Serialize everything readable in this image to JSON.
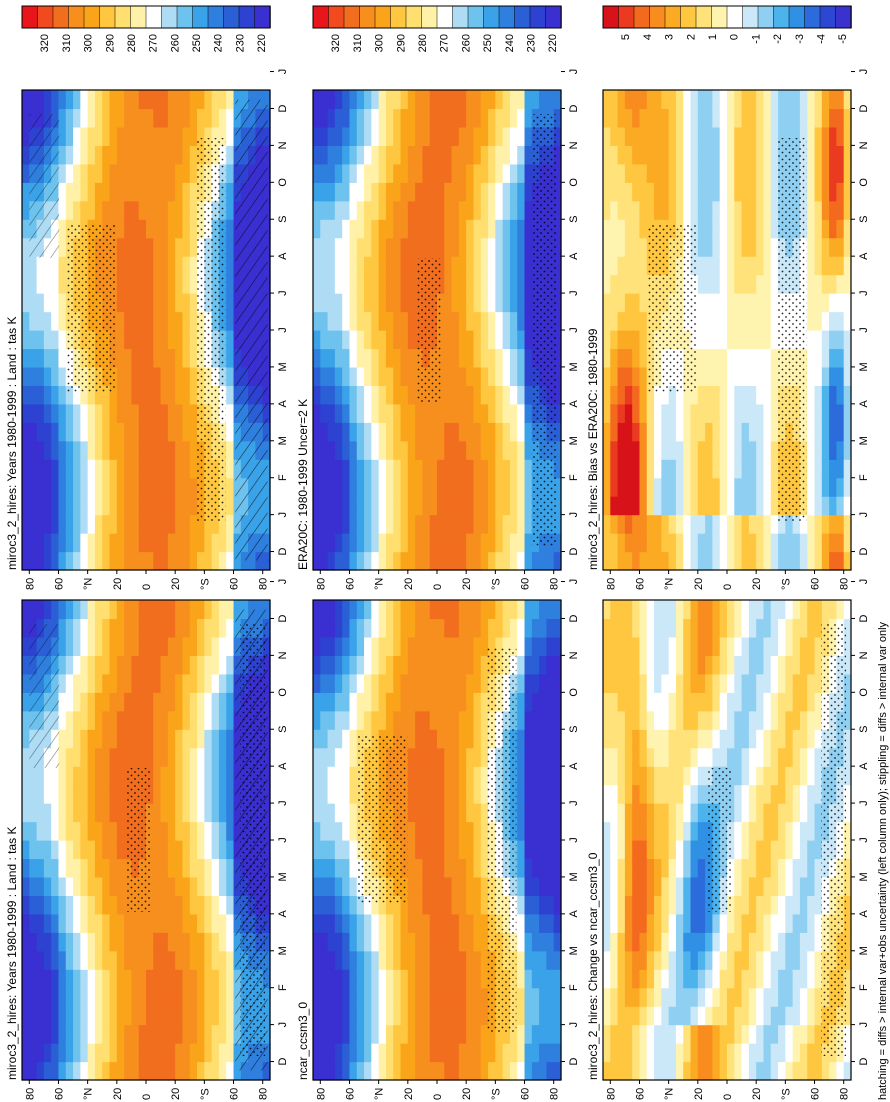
{
  "figure": {
    "footer": "hatching = diffs > internal var+obs uncertainty (left column only); stippling = diffs > internal var only"
  },
  "axes": {
    "lat_ticks": [
      "80",
      "60",
      "°N",
      "20",
      "0",
      "20",
      "°S",
      "60",
      "80"
    ],
    "month_ticks": [
      "D",
      "J",
      "F",
      "M",
      "A",
      "M",
      "J",
      "J",
      "A",
      "S",
      "O",
      "N",
      "D",
      "J"
    ]
  },
  "colorbars": {
    "abs": {
      "labels": [
        "320",
        "310",
        "300",
        "290",
        "280",
        "270",
        "260",
        "250",
        "240",
        "230",
        "220"
      ],
      "colors": [
        "#e8161a",
        "#f04a1e",
        "#f26e1f",
        "#f78f1f",
        "#faa519",
        "#ffc63f",
        "#ffdf70",
        "#fff2a8",
        "#ffffff",
        "#aedcf5",
        "#6ec3ee",
        "#3aa2e8",
        "#2e7fde",
        "#2a5fd6",
        "#2e42d2",
        "#3a2fd0"
      ]
    },
    "diff": {
      "labels": [
        "5",
        "4",
        "3",
        "2",
        "1",
        "0",
        "-1",
        "-2",
        "-3",
        "-4",
        "-5"
      ],
      "colors": [
        "#d71218",
        "#ea3a20",
        "#f36a1f",
        "#f88c1e",
        "#fbaa23",
        "#ffc640",
        "#ffe27a",
        "#fff3b0",
        "#ffffff",
        "#cbe8f8",
        "#8fd0f2",
        "#4db3ec",
        "#2f90e4",
        "#2c6bdb",
        "#2c48d3",
        "#3a32cf"
      ]
    }
  },
  "panels": [
    {
      "id": "p1",
      "title": "miroc3_2_hires: Years 1980-1999 : Land : tas K"
    },
    {
      "id": "p2",
      "title": "ERA20C: 1980-1999 Uncer=2 K"
    },
    {
      "id": "p3",
      "title": "miroc3_2_hires: Bias vs ERA20C: 1980-1999"
    },
    {
      "id": "p4",
      "title": "miroc3_2_hires: Years 1980-1999 : Land : tas K"
    },
    {
      "id": "p5",
      "title": "ncar_ccsm3_0"
    },
    {
      "id": "p6",
      "title": "miroc3_2_hires: Change vs ncar_ccsm3_0"
    }
  ],
  "chart_data": [
    {
      "type": "heatmap",
      "title": "miroc3_2_hires: Years 1980-1999 : Land : tas K",
      "x": "latitude (80N to 80S)",
      "y": "month (Dec to Jan)",
      "units": "K",
      "clim": [
        215,
        325
      ]
    },
    {
      "type": "heatmap",
      "title": "ERA20C: 1980-1999 Uncer=2 K",
      "x": "latitude (80N to 80S)",
      "y": "month (Dec to Jan)",
      "units": "K",
      "clim": [
        215,
        325
      ]
    },
    {
      "type": "heatmap",
      "title": "miroc3_2_hires: Bias vs ERA20C: 1980-1999",
      "x": "latitude (80N to 80S)",
      "y": "month (Dec to Jan)",
      "units": "K",
      "clim": [
        -5.5,
        5.5
      ]
    },
    {
      "type": "heatmap",
      "title": "miroc3_2_hires: Years 1980-1999 : Land : tas K",
      "x": "latitude (80N to 80S)",
      "y": "month (Dec to Jan)",
      "units": "K",
      "clim": [
        215,
        325
      ]
    },
    {
      "type": "heatmap",
      "title": "ncar_ccsm3_0",
      "x": "latitude (80N to 80S)",
      "y": "month (Dec to Jan)",
      "units": "K",
      "clim": [
        215,
        325
      ]
    },
    {
      "type": "heatmap",
      "title": "miroc3_2_hires: Change vs ncar_ccsm3_0",
      "x": "latitude (80N to 80S)",
      "y": "month (Dec to Jan)",
      "units": "K",
      "clim": [
        -5.5,
        5.5
      ]
    }
  ]
}
